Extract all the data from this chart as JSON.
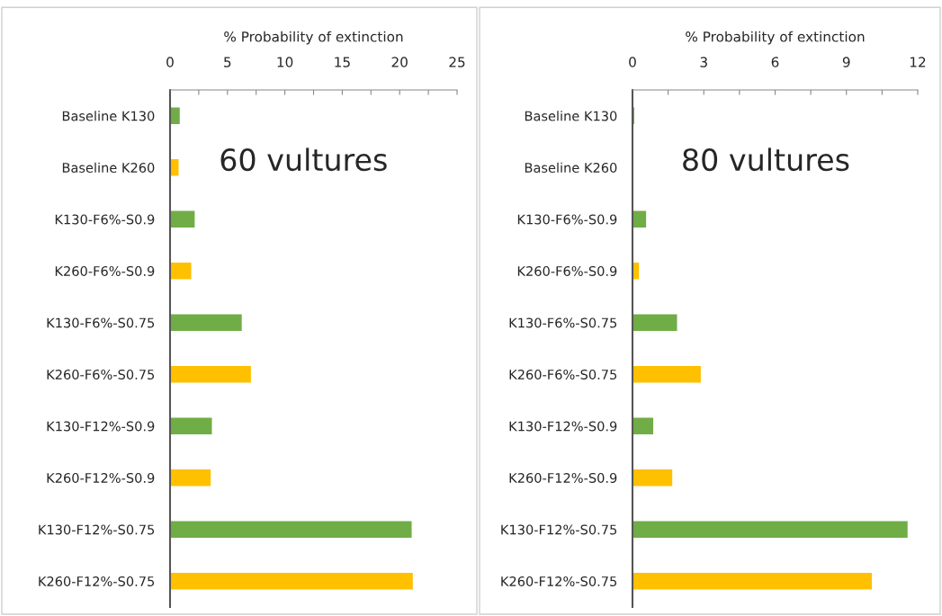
{
  "chart_data": [
    {
      "type": "bar",
      "orientation": "horizontal",
      "xlabel": "% Probability of extinction",
      "categories": [
        "Baseline K130",
        "Baseline K260",
        "K130-F6%-S0.9",
        "K260-F6%-S0.9",
        "K130-F6%-S0.75",
        "K260-F6%-S0.75",
        "K130-F12%-S0.9",
        "K260-F12%-S0.9",
        "K130-F12%-S0.75",
        "K260-F12%-S0.75"
      ],
      "values": [
        0.9,
        0.8,
        2.2,
        1.9,
        6.3,
        7.1,
        3.7,
        3.6,
        21.1,
        21.2
      ],
      "colors": [
        "#70ad47",
        "#ffc000",
        "#70ad47",
        "#ffc000",
        "#70ad47",
        "#ffc000",
        "#70ad47",
        "#ffc000",
        "#70ad47",
        "#ffc000"
      ],
      "xlim": [
        0,
        25
      ],
      "xticks": [
        0,
        {
          "value": 2.5,
          "label": null
        },
        5,
        {
          "value": 7.5,
          "label": null
        },
        10,
        {
          "value": 12.5,
          "label": null
        },
        15,
        {
          "value": 17.5,
          "label": null
        },
        20,
        {
          "value": 22.5,
          "label": null
        },
        25
      ],
      "annotations": [
        "60 vultures"
      ],
      "grid": false,
      "legend": false
    },
    {
      "type": "bar",
      "orientation": "horizontal",
      "xlabel": "% Probability of extinction",
      "categories": [
        "Baseline K130",
        "Baseline K260",
        "K130-F6%-S0.9",
        "K260-F6%-S0.9",
        "K130-F6%-S0.75",
        "K260-F6%-S0.75",
        "K130-F12%-S0.9",
        "K260-F12%-S0.9",
        "K130-F12%-S0.75",
        "K260-F12%-S0.75"
      ],
      "values": [
        0.1,
        null,
        0.6,
        0.3,
        1.9,
        2.9,
        0.9,
        1.7,
        11.6,
        10.1
      ],
      "colors": [
        "#70ad47",
        "#ffc000",
        "#70ad47",
        "#ffc000",
        "#70ad47",
        "#ffc000",
        "#70ad47",
        "#ffc000",
        "#70ad47",
        "#ffc000"
      ],
      "xlim": [
        0,
        12
      ],
      "xticks": [
        0,
        {
          "value": 1.5,
          "label": null
        },
        3,
        {
          "value": 4.5,
          "label": null
        },
        6,
        {
          "value": 7.5,
          "label": null
        },
        9,
        {
          "value": 10.5,
          "label": null
        },
        12
      ],
      "annotations": [
        "80 vultures"
      ],
      "grid": false,
      "legend": false
    }
  ]
}
